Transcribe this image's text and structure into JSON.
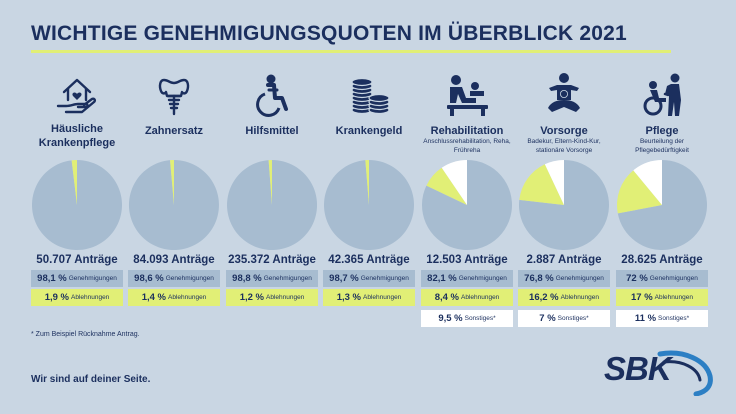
{
  "title": "WICHTIGE GENEHMIGUNGSQUOTEN IM ÜBERBLICK 2021",
  "footnote": "* Zum Beispiel Rücknahme Antrag.",
  "slogan": "Wir sind auf deiner Seite.",
  "logo_text": "SBK",
  "colors": {
    "background": "#c9d6e3",
    "navy": "#1b2f5e",
    "genehmigungen": "#a7bcd0",
    "ablehnungen": "#e1ef76",
    "sonstiges": "#ffffff",
    "logo_arc": "#2c7fc4"
  },
  "categories": [
    {
      "icon": "house-hand-icon",
      "label": "Häusliche Krankenpflege",
      "sub": "",
      "antraege": "50.707 Anträge",
      "gen_pct": "98,1 %",
      "gen_label": "Genehmigungen",
      "abl_pct": "1,9 %",
      "abl_label": "Ablehnungen",
      "son_pct": "",
      "son_label": ""
    },
    {
      "icon": "tooth-implant-icon",
      "label": "Zahnersatz",
      "sub": "",
      "antraege": "84.093 Anträge",
      "gen_pct": "98,6 %",
      "gen_label": "Genehmigungen",
      "abl_pct": "1,4 %",
      "abl_label": "Ablehnungen",
      "son_pct": "",
      "son_label": ""
    },
    {
      "icon": "wheelchair-icon",
      "label": "Hilfsmittel",
      "sub": "",
      "antraege": "235.372 Anträge",
      "gen_pct": "98,8 %",
      "gen_label": "Genehmigungen",
      "abl_pct": "1,2 %",
      "abl_label": "Ablehnungen",
      "son_pct": "",
      "son_label": ""
    },
    {
      "icon": "coin-stacks-icon",
      "label": "Krankengeld",
      "sub": "",
      "antraege": "42.365 Anträge",
      "gen_pct": "98,7 %",
      "gen_label": "Genehmigungen",
      "abl_pct": "1,3 %",
      "abl_label": "Ablehnungen",
      "son_pct": "",
      "son_label": ""
    },
    {
      "icon": "physiotherapy-icon",
      "label": "Rehabilitation",
      "sub": "Anschlussrehabilitation, Reha, Frühreha",
      "antraege": "12.503 Anträge",
      "gen_pct": "82,1 %",
      "gen_label": "Genehmigungen",
      "abl_pct": "8,4 %",
      "abl_label": "Ablehnungen",
      "son_pct": "9,5 %",
      "son_label": "Sonstiges*"
    },
    {
      "icon": "parent-child-icon",
      "label": "Vorsorge",
      "sub": "Badekur, Eltern-Kind-Kur, stationäre Vorsorge",
      "antraege": "2.887 Anträge",
      "gen_pct": "76,8 %",
      "gen_label": "Genehmigungen",
      "abl_pct": "16,2 %",
      "abl_label": "Ablehnungen",
      "son_pct": "7 %",
      "son_label": "Sonstiges*"
    },
    {
      "icon": "caregiver-wheelchair-icon",
      "label": "Pflege",
      "sub": "Beurteilung der Pflegebedürftigkeit",
      "antraege": "28.625 Anträge",
      "gen_pct": "72 %",
      "gen_label": "Genehmigungen",
      "abl_pct": "17 %",
      "abl_label": "Ablehnungen",
      "son_pct": "11 %",
      "son_label": "Sonstiges*"
    }
  ],
  "chart_data": {
    "type": "pie",
    "title": "WICHTIGE GENEHMIGUNGSQUOTEN IM ÜBERBLICK 2021",
    "legend": [
      "Genehmigungen",
      "Ablehnungen",
      "Sonstiges*"
    ],
    "charts": [
      {
        "category": "Häusliche Krankenpflege",
        "antraege": 50707,
        "values": {
          "Genehmigungen": 98.1,
          "Ablehnungen": 1.9,
          "Sonstiges": 0
        }
      },
      {
        "category": "Zahnersatz",
        "antraege": 84093,
        "values": {
          "Genehmigungen": 98.6,
          "Ablehnungen": 1.4,
          "Sonstiges": 0
        }
      },
      {
        "category": "Hilfsmittel",
        "antraege": 235372,
        "values": {
          "Genehmigungen": 98.8,
          "Ablehnungen": 1.2,
          "Sonstiges": 0
        }
      },
      {
        "category": "Krankengeld",
        "antraege": 42365,
        "values": {
          "Genehmigungen": 98.7,
          "Ablehnungen": 1.3,
          "Sonstiges": 0
        }
      },
      {
        "category": "Rehabilitation",
        "antraege": 12503,
        "values": {
          "Genehmigungen": 82.1,
          "Ablehnungen": 8.4,
          "Sonstiges": 9.5
        }
      },
      {
        "category": "Vorsorge",
        "antraege": 2887,
        "values": {
          "Genehmigungen": 76.8,
          "Ablehnungen": 16.2,
          "Sonstiges": 7
        }
      },
      {
        "category": "Pflege",
        "antraege": 28625,
        "values": {
          "Genehmigungen": 72,
          "Ablehnungen": 17,
          "Sonstiges": 11
        }
      }
    ]
  }
}
